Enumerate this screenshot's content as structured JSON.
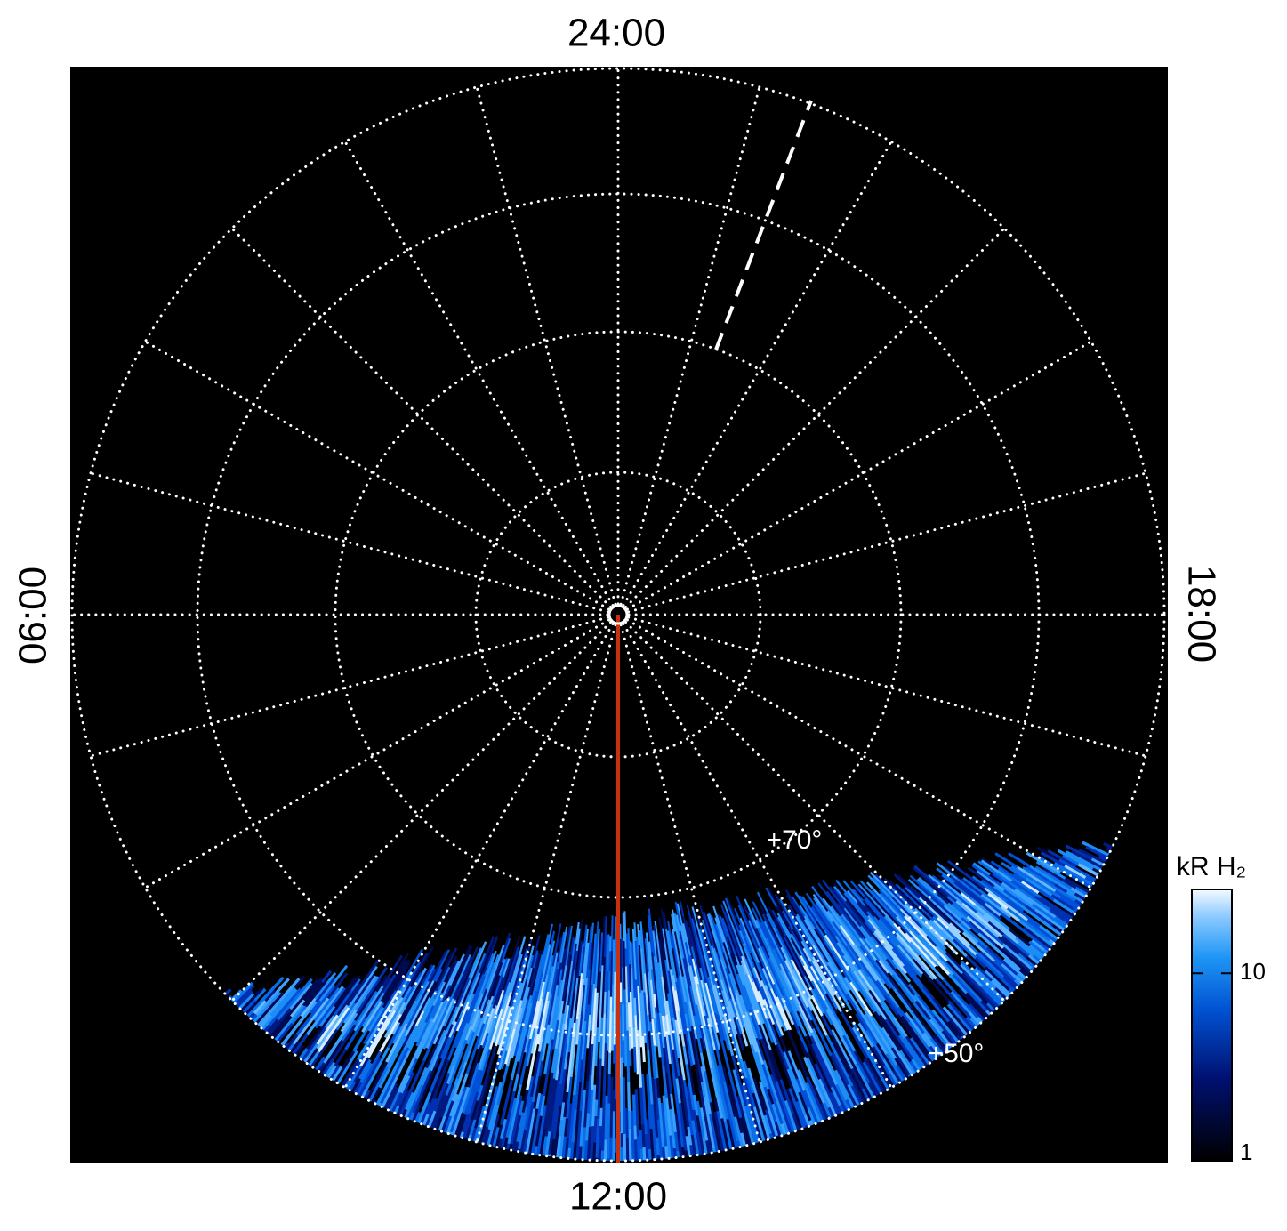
{
  "labels": {
    "top": "24:00",
    "left": "06:00",
    "right": "18:00",
    "bottom": "12:00"
  },
  "latitude_labels": [
    "+70°",
    "+50°"
  ],
  "colorbar": {
    "label": "kR H₂",
    "scale": "log",
    "lim": [
      1,
      28
    ],
    "ticks": [
      1,
      10
    ]
  }
}
